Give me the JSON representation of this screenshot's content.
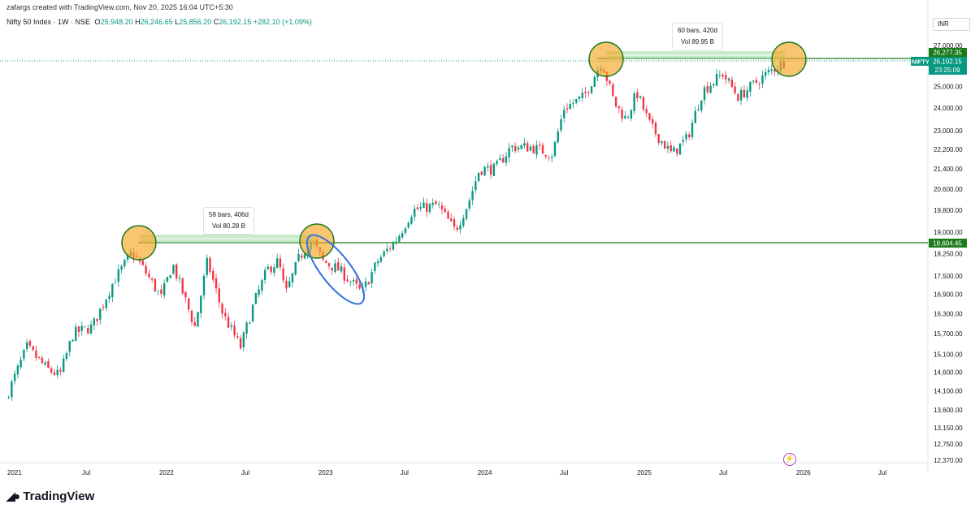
{
  "header": {
    "credit": "zafargs created with TradingView.com, Nov 20, 2025 16:04 UTC+5:30",
    "title": "Nifty 50 Index · 1W · NSE",
    "open_label": "O",
    "open": "25,948.20",
    "high_label": "H",
    "high": "26,246.65",
    "low_label": "L",
    "low": "25,856.20",
    "close_label": "C",
    "close": "26,192.15",
    "change": "+282.10 (+1.09%)",
    "currency": "INR"
  },
  "footer": {
    "brand": "TradingView",
    "logo_icon": "tradingview-logo-icon"
  },
  "badges": {
    "level_top": "26,277.35",
    "symbol": "NIFTY",
    "last_price": "26,192.15",
    "countdown": "23:25:09",
    "level_mid": "18,604.45"
  },
  "annotations": [
    {
      "bars": "58 bars, 406d",
      "vol": "Vol 80.28 B"
    },
    {
      "bars": "60 bars, 420d",
      "vol": "Vol 89.95 B"
    }
  ],
  "colors": {
    "up": "#089981",
    "down": "#f23645",
    "level_line": "#1b7a1b",
    "badge_green": "#089981",
    "circle": "#f5a623",
    "ellipse": "#2f72e0"
  },
  "chart_data": {
    "type": "candlestick",
    "title": "Nifty 50 Index · 1W · NSE",
    "x_ticks": [
      "2021",
      "Jul",
      "2022",
      "Jul",
      "2023",
      "Jul",
      "2024",
      "Jul",
      "2025",
      "Jul",
      "2026",
      "Jul"
    ],
    "y_ticks": [
      "27,000.00",
      "25,000.00",
      "24,000.00",
      "23,000.00",
      "22,200.00",
      "21,400.00",
      "20,600.00",
      "19,800.00",
      "19,000.00",
      "18,250.00",
      "17,500.00",
      "16,900.00",
      "16,300.00",
      "15,700.00",
      "15,100.00",
      "14,600.00",
      "14,100.00",
      "13,600.00",
      "13,150.00",
      "12,750.00",
      "12,370.00"
    ],
    "y_scale": "log",
    "horizontal_levels": [
      26277.35,
      18604.45
    ],
    "last_close": 26192.15,
    "weekly_close_path": [
      [
        "2021-01-01",
        14000
      ],
      [
        "2021-02-15",
        15300
      ],
      [
        "2021-04-01",
        14700
      ],
      [
        "2021-05-01",
        14500
      ],
      [
        "2021-06-01",
        15700
      ],
      [
        "2021-07-15",
        15900
      ],
      [
        "2021-09-01",
        17300
      ],
      [
        "2021-10-15",
        18300
      ],
      [
        "2021-11-15",
        17600
      ],
      [
        "2021-12-20",
        16800
      ],
      [
        "2022-01-15",
        17900
      ],
      [
        "2022-03-07",
        15900
      ],
      [
        "2022-04-05",
        18000
      ],
      [
        "2022-05-10",
        16300
      ],
      [
        "2022-06-20",
        15300
      ],
      [
        "2022-07-20",
        16600
      ],
      [
        "2022-08-20",
        17700
      ],
      [
        "2022-09-15",
        18000
      ],
      [
        "2022-10-01",
        16900
      ],
      [
        "2022-11-01",
        18100
      ],
      [
        "2022-12-01",
        18750
      ],
      [
        "2022-12-25",
        18000
      ],
      [
        "2023-02-01",
        17700
      ],
      [
        "2023-03-25",
        16950
      ],
      [
        "2023-05-01",
        18000
      ],
      [
        "2023-06-15",
        18800
      ],
      [
        "2023-07-20",
        19800
      ],
      [
        "2023-09-15",
        20000
      ],
      [
        "2023-10-25",
        19050
      ],
      [
        "2023-11-25",
        20100
      ],
      [
        "2023-12-20",
        21400
      ],
      [
        "2024-01-25",
        21400
      ],
      [
        "2024-03-01",
        22300
      ],
      [
        "2024-04-15",
        22300
      ],
      [
        "2024-06-04",
        22000
      ],
      [
        "2024-07-01",
        24000
      ],
      [
        "2024-08-15",
        24500
      ],
      [
        "2024-09-25",
        26200
      ],
      [
        "2024-10-25",
        24200
      ],
      [
        "2024-11-20",
        23500
      ],
      [
        "2024-12-15",
        24700
      ],
      [
        "2025-01-15",
        23200
      ],
      [
        "2025-03-05",
        22000
      ],
      [
        "2025-04-10",
        22700
      ],
      [
        "2025-05-15",
        24800
      ],
      [
        "2025-06-30",
        25600
      ],
      [
        "2025-08-05",
        24500
      ],
      [
        "2025-09-15",
        25200
      ],
      [
        "2025-10-15",
        25700
      ],
      [
        "2025-11-20",
        26192.15
      ]
    ],
    "measures": [
      {
        "from": "2021-10-18",
        "to": "2022-11-28",
        "bars": 58,
        "days": 406,
        "volume": "80.28 B"
      },
      {
        "from": "2024-09-23",
        "to": "2025-11-17",
        "bars": 60,
        "days": 420,
        "volume": "89.95 B"
      }
    ]
  }
}
